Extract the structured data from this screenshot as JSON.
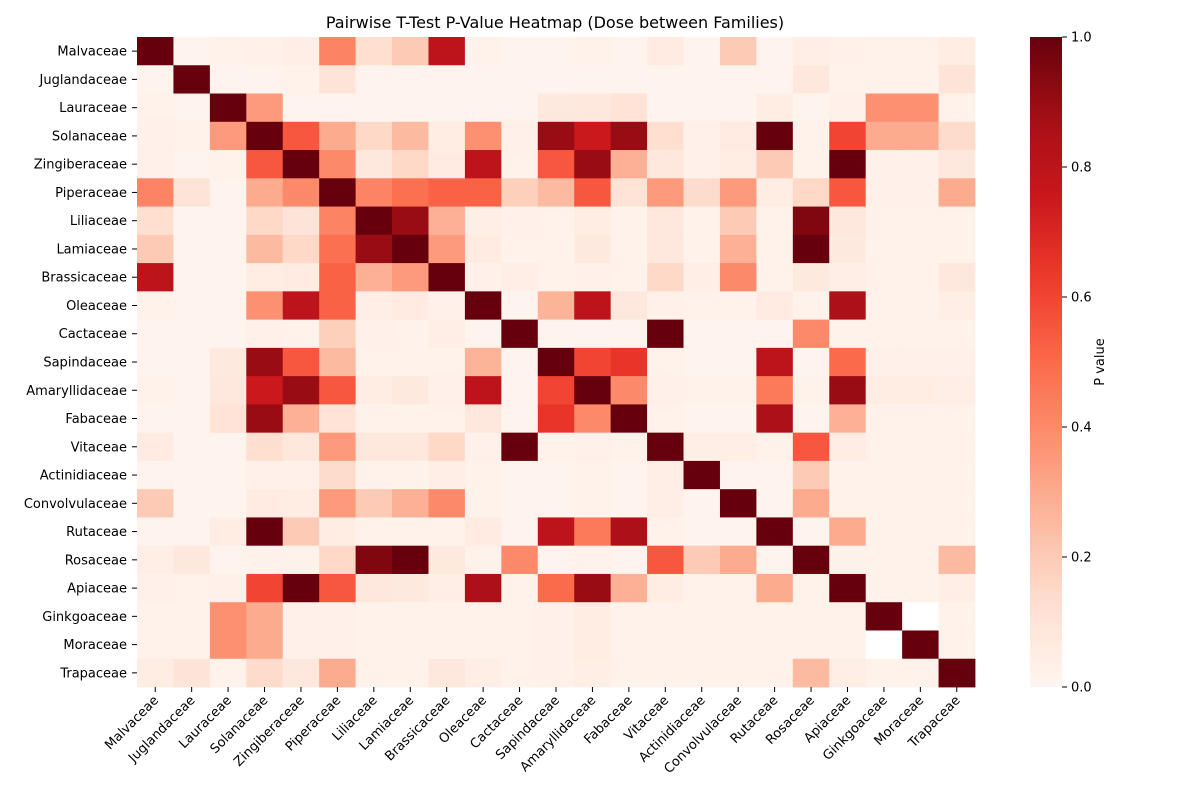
{
  "chart_data": {
    "type": "heatmap",
    "title": "Pairwise T-Test P-Value Heatmap (Dose between Families)",
    "xlabel": "",
    "ylabel": "",
    "row_labels": [
      "Malvaceae",
      "Juglandaceae",
      "Lauraceae",
      "Solanaceae",
      "Zingiberaceae",
      "Piperaceae",
      "Liliaceae",
      "Lamiaceae",
      "Brassicaceae",
      "Oleaceae",
      "Cactaceae",
      "Sapindaceae",
      "Amaryllidaceae",
      "Fabaceae",
      "Vitaceae",
      "Actinidiaceae ",
      "Convolvulaceae",
      "Rutaceae",
      "Rosaceae",
      "Apiaceae",
      "Ginkgoaceae",
      "Moraceae",
      "Trapaceae"
    ],
    "col_labels": [
      "Malvaceae",
      "Juglandaceae",
      "Lauraceae",
      "Solanaceae",
      "Zingiberaceae",
      "Piperaceae",
      "Liliaceae",
      "Lamiaceae",
      "Brassicaceae",
      "Oleaceae",
      "Cactaceae",
      "Sapindaceae",
      "Amaryllidaceae",
      "Fabaceae",
      "Vitaceae",
      "Actinidiaceae",
      "Convolvulaceae",
      "Rutaceae",
      "Rosaceae",
      "Apiaceae",
      "Ginkgoaceae",
      "Moraceae",
      "Trapaceae"
    ],
    "values": [
      [
        1.0,
        0.01,
        0.02,
        0.03,
        0.04,
        0.42,
        0.13,
        0.2,
        0.8,
        0.02,
        0.01,
        0.01,
        0.02,
        0.01,
        0.06,
        0.01,
        0.2,
        0.01,
        0.04,
        0.03,
        0.02,
        0.02,
        0.05
      ],
      [
        0.01,
        1.0,
        0.01,
        0.01,
        0.02,
        0.1,
        0.01,
        0.01,
        0.01,
        0.01,
        0.01,
        0.01,
        0.01,
        0.01,
        0.01,
        0.01,
        0.01,
        0.01,
        0.08,
        0.02,
        0.02,
        0.02,
        0.1
      ],
      [
        0.02,
        0.01,
        1.0,
        0.35,
        0.01,
        0.01,
        0.01,
        0.01,
        0.01,
        0.01,
        0.01,
        0.07,
        0.08,
        0.11,
        0.01,
        0.01,
        0.01,
        0.05,
        0.01,
        0.03,
        0.38,
        0.38,
        0.02
      ],
      [
        0.03,
        0.02,
        0.35,
        1.0,
        0.55,
        0.3,
        0.15,
        0.25,
        0.05,
        0.38,
        0.03,
        0.9,
        0.75,
        0.9,
        0.13,
        0.03,
        0.06,
        1.0,
        0.02,
        0.6,
        0.3,
        0.3,
        0.14
      ],
      [
        0.03,
        0.01,
        0.02,
        0.55,
        1.0,
        0.4,
        0.08,
        0.15,
        0.06,
        0.8,
        0.02,
        0.55,
        0.9,
        0.28,
        0.08,
        0.03,
        0.05,
        0.2,
        0.02,
        1.0,
        0.03,
        0.03,
        0.08
      ],
      [
        0.42,
        0.1,
        0.01,
        0.3,
        0.4,
        1.0,
        0.42,
        0.48,
        0.52,
        0.52,
        0.18,
        0.25,
        0.55,
        0.11,
        0.35,
        0.14,
        0.35,
        0.05,
        0.15,
        0.55,
        0.03,
        0.03,
        0.3
      ],
      [
        0.13,
        0.01,
        0.01,
        0.15,
        0.1,
        0.42,
        1.0,
        0.9,
        0.28,
        0.04,
        0.03,
        0.02,
        0.05,
        0.02,
        0.08,
        0.02,
        0.2,
        0.02,
        0.95,
        0.08,
        0.02,
        0.02,
        0.02
      ],
      [
        0.2,
        0.01,
        0.01,
        0.25,
        0.15,
        0.48,
        0.9,
        1.0,
        0.35,
        0.06,
        0.02,
        0.02,
        0.07,
        0.02,
        0.08,
        0.02,
        0.28,
        0.02,
        1.0,
        0.07,
        0.02,
        0.02,
        0.02
      ],
      [
        0.8,
        0.01,
        0.01,
        0.05,
        0.06,
        0.52,
        0.28,
        0.35,
        1.0,
        0.03,
        0.04,
        0.02,
        0.03,
        0.02,
        0.15,
        0.04,
        0.4,
        0.02,
        0.07,
        0.04,
        0.02,
        0.02,
        0.08
      ],
      [
        0.02,
        0.01,
        0.01,
        0.38,
        0.8,
        0.52,
        0.04,
        0.06,
        0.03,
        1.0,
        0.01,
        0.27,
        0.8,
        0.08,
        0.03,
        0.02,
        0.02,
        0.06,
        0.02,
        0.85,
        0.02,
        0.02,
        0.04
      ],
      [
        0.01,
        0.01,
        0.01,
        0.03,
        0.02,
        0.18,
        0.03,
        0.02,
        0.04,
        0.01,
        1.0,
        0.01,
        0.01,
        0.01,
        1.0,
        0.01,
        0.01,
        0.01,
        0.4,
        0.02,
        0.02,
        0.02,
        0.02
      ],
      [
        0.01,
        0.01,
        0.07,
        0.9,
        0.55,
        0.25,
        0.02,
        0.02,
        0.02,
        0.27,
        0.01,
        1.0,
        0.6,
        0.65,
        0.02,
        0.01,
        0.01,
        0.8,
        0.01,
        0.5,
        0.03,
        0.03,
        0.03
      ],
      [
        0.02,
        0.01,
        0.08,
        0.75,
        0.9,
        0.55,
        0.05,
        0.07,
        0.03,
        0.8,
        0.01,
        0.6,
        1.0,
        0.4,
        0.03,
        0.02,
        0.02,
        0.45,
        0.02,
        0.9,
        0.05,
        0.05,
        0.04
      ],
      [
        0.01,
        0.01,
        0.11,
        0.9,
        0.28,
        0.11,
        0.02,
        0.02,
        0.02,
        0.08,
        0.01,
        0.65,
        0.4,
        1.0,
        0.02,
        0.01,
        0.01,
        0.85,
        0.01,
        0.28,
        0.02,
        0.02,
        0.02
      ],
      [
        0.06,
        0.01,
        0.01,
        0.13,
        0.08,
        0.35,
        0.08,
        0.08,
        0.15,
        0.03,
        1.0,
        0.02,
        0.03,
        0.02,
        1.0,
        0.04,
        0.04,
        0.02,
        0.55,
        0.05,
        0.02,
        0.02,
        0.02
      ],
      [
        0.01,
        0.01,
        0.01,
        0.03,
        0.03,
        0.14,
        0.02,
        0.02,
        0.04,
        0.02,
        0.01,
        0.01,
        0.02,
        0.01,
        0.04,
        1.0,
        0.01,
        0.01,
        0.2,
        0.02,
        0.02,
        0.02,
        0.02
      ],
      [
        0.2,
        0.01,
        0.01,
        0.06,
        0.05,
        0.35,
        0.2,
        0.28,
        0.4,
        0.02,
        0.01,
        0.01,
        0.02,
        0.01,
        0.04,
        0.01,
        1.0,
        0.01,
        0.3,
        0.02,
        0.02,
        0.02,
        0.02
      ],
      [
        0.01,
        0.01,
        0.05,
        1.0,
        0.2,
        0.05,
        0.02,
        0.02,
        0.02,
        0.06,
        0.01,
        0.8,
        0.45,
        0.85,
        0.02,
        0.01,
        0.01,
        1.0,
        0.01,
        0.3,
        0.02,
        0.02,
        0.02
      ],
      [
        0.04,
        0.08,
        0.01,
        0.02,
        0.02,
        0.15,
        0.95,
        1.0,
        0.07,
        0.02,
        0.4,
        0.01,
        0.02,
        0.01,
        0.55,
        0.2,
        0.3,
        0.01,
        1.0,
        0.02,
        0.02,
        0.02,
        0.25
      ],
      [
        0.03,
        0.02,
        0.03,
        0.6,
        1.0,
        0.55,
        0.08,
        0.07,
        0.04,
        0.85,
        0.02,
        0.5,
        0.9,
        0.28,
        0.05,
        0.02,
        0.02,
        0.3,
        0.02,
        1.0,
        0.02,
        0.02,
        0.04
      ],
      [
        0.02,
        0.02,
        0.38,
        0.3,
        0.03,
        0.03,
        0.02,
        0.02,
        0.02,
        0.02,
        0.02,
        0.03,
        0.05,
        0.02,
        0.02,
        0.02,
        0.02,
        0.02,
        0.02,
        0.02,
        1.0,
        0.0,
        0.02
      ],
      [
        0.02,
        0.02,
        0.38,
        0.3,
        0.03,
        0.03,
        0.02,
        0.02,
        0.02,
        0.02,
        0.02,
        0.03,
        0.05,
        0.02,
        0.02,
        0.02,
        0.02,
        0.02,
        0.02,
        0.02,
        0.0,
        1.0,
        0.02
      ],
      [
        0.05,
        0.1,
        0.02,
        0.14,
        0.08,
        0.3,
        0.02,
        0.02,
        0.08,
        0.04,
        0.02,
        0.03,
        0.04,
        0.02,
        0.02,
        0.02,
        0.02,
        0.02,
        0.25,
        0.04,
        0.02,
        0.02,
        1.0
      ]
    ],
    "vmin": 0.0,
    "vmax": 1.0,
    "colormap": "Reds",
    "colorbar": {
      "label": "P value",
      "ticks": [
        "0.0",
        "0.2",
        "0.4",
        "0.6",
        "0.8",
        "1.0"
      ],
      "tick_values": [
        0.0,
        0.2,
        0.4,
        0.6,
        0.8,
        1.0
      ]
    },
    "legend_placement": "right",
    "grid": false
  }
}
